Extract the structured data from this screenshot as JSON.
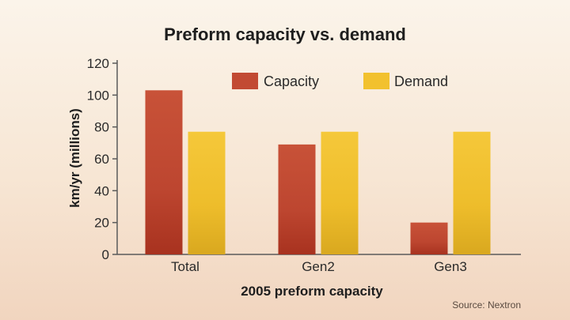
{
  "chart_data": {
    "type": "bar",
    "title": "Preform capacity vs. demand",
    "xlabel": "2005 preform capacity",
    "ylabel": "km/yr (millions)",
    "categories": [
      "Total",
      "Gen2",
      "Gen3"
    ],
    "series": [
      {
        "name": "Capacity",
        "values": [
          103,
          69,
          20
        ],
        "color": "#c24a33"
      },
      {
        "name": "Demand",
        "values": [
          77,
          77,
          77
        ],
        "color": "#f2c12e"
      }
    ],
    "ylim": [
      0,
      120
    ],
    "yticks": [
      0,
      20,
      40,
      60,
      80,
      100,
      120
    ],
    "grid": false,
    "legend": "top-right",
    "source": "Source: Nextron"
  }
}
